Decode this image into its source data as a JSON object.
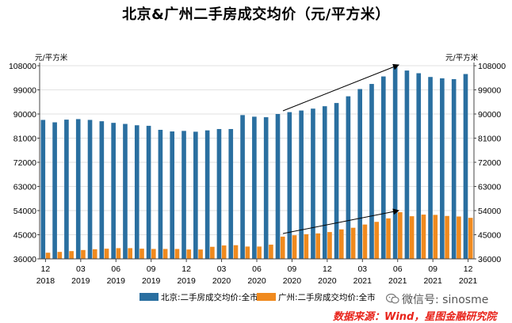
{
  "chart_data": {
    "type": "bar",
    "title": "北京&广州二手房成交均价（元/平方米）",
    "unit_left": "元/平方米",
    "unit_right": "元/平方米",
    "y_ticks": [
      "108000",
      "99000",
      "90000",
      "81000",
      "72000",
      "63000",
      "54000",
      "45000",
      "36000"
    ],
    "ylim": [
      36000,
      108000
    ],
    "x_tick_month_labels": [
      "12",
      "03",
      "06",
      "09",
      "12",
      "03",
      "06",
      "09",
      "12",
      "03",
      "06",
      "09",
      "12"
    ],
    "x_tick_year_labels": [
      "2018",
      "2019",
      "2019",
      "2019",
      "2019",
      "2020",
      "2020",
      "2020",
      "2020",
      "2021",
      "2021",
      "2021",
      "2021"
    ],
    "categories": [
      "2018-12",
      "2019-01",
      "2019-02",
      "2019-03",
      "2019-04",
      "2019-05",
      "2019-06",
      "2019-07",
      "2019-08",
      "2019-09",
      "2019-10",
      "2019-11",
      "2019-12",
      "2020-01",
      "2020-02",
      "2020-03",
      "2020-04",
      "2020-05",
      "2020-06",
      "2020-07",
      "2020-08",
      "2020-09",
      "2020-10",
      "2020-11",
      "2020-12",
      "2021-01",
      "2021-02",
      "2021-03",
      "2021-04",
      "2021-05",
      "2021-06",
      "2021-07",
      "2021-08",
      "2021-09",
      "2021-10",
      "2021-11",
      "2021-12"
    ],
    "series": [
      {
        "name": "北京:二手房成交均价:全市",
        "color": "#2a6fa0",
        "values": [
          87800,
          86900,
          87900,
          88100,
          87800,
          87300,
          86700,
          86300,
          85800,
          85600,
          84100,
          83500,
          83700,
          83400,
          83900,
          84400,
          84400,
          89600,
          89000,
          88800,
          90000,
          90700,
          91300,
          92000,
          92900,
          94100,
          96600,
          99300,
          101200,
          104000,
          107500,
          106200,
          105200,
          103800,
          103300,
          103000,
          104900
        ]
      },
      {
        "name": "广州:二手房成交均价:全市",
        "color": "#f08a1e",
        "values": [
          38300,
          38600,
          38900,
          39300,
          39600,
          39800,
          40000,
          40000,
          39800,
          39700,
          39700,
          39700,
          39500,
          39500,
          40500,
          41000,
          41100,
          40600,
          40600,
          41300,
          44300,
          44800,
          45200,
          45500,
          46000,
          47000,
          47600,
          48800,
          49800,
          51100,
          53400,
          51900,
          52500,
          52400,
          52000,
          51800,
          51300
        ]
      }
    ],
    "annotations": [
      "arrow: 北京 trend 2020-09 to 2021-07",
      "arrow: 广州 trend 2020-09 to 2021-07"
    ]
  },
  "watermark": {
    "text": "微信号: sinosme",
    "icon": "wechat-icon"
  },
  "source": {
    "text": "数据来源：Wind，星图金融研究院",
    "color": "#e8231a"
  }
}
